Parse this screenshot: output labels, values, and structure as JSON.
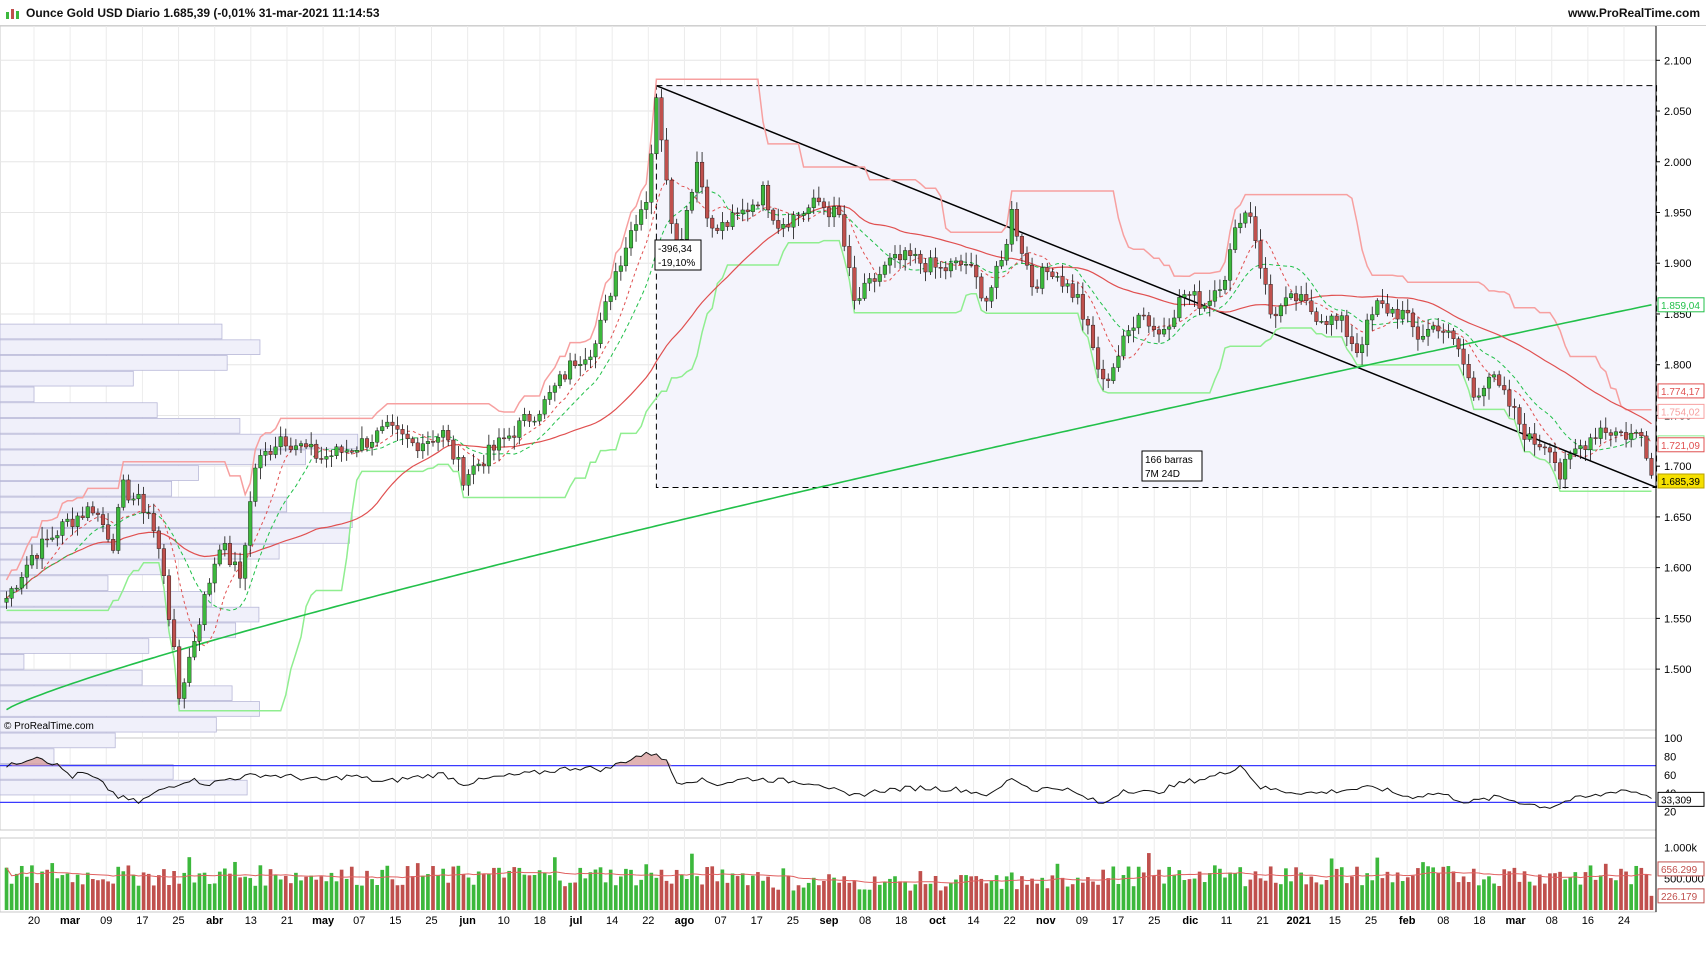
{
  "header": {
    "title": "Ounce Gold USD Diario 1.685,39 (-0,01% 31-mar-2021 11:14:53",
    "site": "www.ProRealTime.com"
  },
  "watermark": "© ProRealTime.com",
  "colors": {
    "up": "#3cb83c",
    "down": "#c0504d",
    "ma200": "#22c04a",
    "ma50": "#e05050",
    "band_upper": "#f7a0a0",
    "band_lower": "#90ee90",
    "rsi_line": "#111111",
    "rsi_level": "#3a3aff",
    "price_tag": "#f5e000"
  },
  "chart_data": [
    {
      "type": "candlestick",
      "ylim": [
        1440,
        2120
      ],
      "y_ticks": [
        "2.100",
        "2.050",
        "2.000",
        "1.950",
        "1.900",
        "1.850",
        "1.800",
        "1.750",
        "1.700",
        "1.650",
        "1.600",
        "1.550",
        "1.500"
      ],
      "y_tick_values": [
        2100,
        2050,
        2000,
        1950,
        1900,
        1850,
        1800,
        1750,
        1700,
        1650,
        1600,
        1550,
        1500
      ],
      "x_labels": [
        "20",
        "mar",
        "09",
        "17",
        "25",
        "abr",
        "13",
        "21",
        "may",
        "07",
        "15",
        "25",
        "jun",
        "10",
        "18",
        "jul",
        "14",
        "22",
        "ago",
        "07",
        "17",
        "25",
        "sep",
        "08",
        "18",
        "oct",
        "14",
        "22",
        "nov",
        "09",
        "17",
        "25",
        "dic",
        "11",
        "21",
        "2021",
        "15",
        "25",
        "feb",
        "08",
        "18",
        "mar",
        "08",
        "16",
        "24"
      ],
      "x_label_bold": [
        "mar",
        "abr",
        "may",
        "jun",
        "jul",
        "ago",
        "sep",
        "oct",
        "nov",
        "dic",
        "2021",
        "feb",
        "mar"
      ],
      "anchors": [
        [
          0,
          1570
        ],
        [
          5,
          1612
        ],
        [
          12,
          1645
        ],
        [
          17,
          1660
        ],
        [
          21,
          1625
        ],
        [
          23,
          1678
        ],
        [
          28,
          1655
        ],
        [
          31,
          1596
        ],
        [
          34,
          1472
        ],
        [
          38,
          1550
        ],
        [
          42,
          1625
        ],
        [
          46,
          1590
        ],
        [
          49,
          1700
        ],
        [
          54,
          1730
        ],
        [
          62,
          1708
        ],
        [
          68,
          1718
        ],
        [
          75,
          1735
        ],
        [
          80,
          1722
        ],
        [
          86,
          1732
        ],
        [
          90,
          1690
        ],
        [
          95,
          1712
        ],
        [
          100,
          1735
        ],
        [
          106,
          1762
        ],
        [
          112,
          1805
        ],
        [
          116,
          1820
        ],
        [
          120,
          1892
        ],
        [
          124,
          1946
        ],
        [
          126,
          1965
        ],
        [
          128,
          2058
        ],
        [
          129,
          2028
        ],
        [
          132,
          1908
        ],
        [
          136,
          2000
        ],
        [
          139,
          1930
        ],
        [
          144,
          1945
        ],
        [
          149,
          1970
        ],
        [
          152,
          1940
        ],
        [
          156,
          1948
        ],
        [
          160,
          1960
        ],
        [
          164,
          1945
        ],
        [
          167,
          1860
        ],
        [
          170,
          1878
        ],
        [
          174,
          1900
        ],
        [
          178,
          1905
        ],
        [
          184,
          1893
        ],
        [
          189,
          1900
        ],
        [
          193,
          1865
        ],
        [
          196,
          1900
        ],
        [
          198,
          1950
        ],
        [
          202,
          1880
        ],
        [
          206,
          1895
        ],
        [
          211,
          1865
        ],
        [
          214,
          1815
        ],
        [
          216,
          1780
        ],
        [
          219,
          1810
        ],
        [
          223,
          1855
        ],
        [
          227,
          1830
        ],
        [
          232,
          1870
        ],
        [
          236,
          1860
        ],
        [
          240,
          1890
        ],
        [
          243,
          1948
        ],
        [
          245,
          1950
        ],
        [
          247,
          1900
        ],
        [
          249,
          1850
        ],
        [
          254,
          1865
        ],
        [
          258,
          1850
        ],
        [
          263,
          1840
        ],
        [
          266,
          1815
        ],
        [
          270,
          1858
        ],
        [
          275,
          1850
        ],
        [
          278,
          1828
        ],
        [
          282,
          1840
        ],
        [
          286,
          1815
        ],
        [
          289,
          1770
        ],
        [
          292,
          1790
        ],
        [
          296,
          1760
        ],
        [
          300,
          1725
        ],
        [
          304,
          1722
        ],
        [
          306,
          1690
        ],
        [
          309,
          1715
        ],
        [
          314,
          1738
        ],
        [
          318,
          1732
        ],
        [
          322,
          1730
        ],
        [
          325,
          1685
        ]
      ],
      "up_count": 185,
      "down_count": 140,
      "ma200_start": 1460,
      "ma200_current": "1.859,04",
      "ma50_current": "1.774,17",
      "band_upper_current": "1.754,02",
      "band_lower_current": "1.722,99",
      "ma20_current": "1.721,09",
      "last_price": "1.685,39",
      "measure_box": {
        "from_bar": 128,
        "to_bar": 325,
        "high": 2075,
        "low": 1679
      },
      "measure_label": [
        "-396,34",
        "-19,10%"
      ],
      "bars_label": [
        "166 barras",
        "7M 24D"
      ]
    },
    {
      "type": "line",
      "name": "RSI",
      "ylim": [
        0,
        100
      ],
      "y_ticks": [
        "100",
        "80",
        "60",
        "40",
        "20"
      ],
      "y_tick_values": [
        100,
        80,
        60,
        40,
        20
      ],
      "levels": [
        70,
        30
      ],
      "current": "33,309",
      "anchors": [
        [
          0,
          68
        ],
        [
          3,
          75
        ],
        [
          6,
          81
        ],
        [
          10,
          70
        ],
        [
          13,
          58
        ],
        [
          15,
          62
        ],
        [
          18,
          54
        ],
        [
          22,
          36
        ],
        [
          26,
          30
        ],
        [
          31,
          45
        ],
        [
          36,
          55
        ],
        [
          40,
          50
        ],
        [
          44,
          56
        ],
        [
          50,
          60
        ],
        [
          56,
          58
        ],
        [
          62,
          54
        ],
        [
          68,
          59
        ],
        [
          74,
          52
        ],
        [
          80,
          57
        ],
        [
          86,
          61
        ],
        [
          90,
          50
        ],
        [
          96,
          57
        ],
        [
          104,
          62
        ],
        [
          112,
          68
        ],
        [
          118,
          66
        ],
        [
          124,
          80
        ],
        [
          128,
          84
        ],
        [
          130,
          74
        ],
        [
          132,
          52
        ],
        [
          136,
          55
        ],
        [
          140,
          50
        ],
        [
          146,
          56
        ],
        [
          152,
          54
        ],
        [
          160,
          51
        ],
        [
          166,
          36
        ],
        [
          172,
          43
        ],
        [
          180,
          46
        ],
        [
          188,
          44
        ],
        [
          194,
          38
        ],
        [
          198,
          57
        ],
        [
          202,
          44
        ],
        [
          208,
          46
        ],
        [
          212,
          36
        ],
        [
          216,
          28
        ],
        [
          220,
          44
        ],
        [
          226,
          40
        ],
        [
          232,
          52
        ],
        [
          236,
          56
        ],
        [
          240,
          62
        ],
        [
          243,
          71
        ],
        [
          247,
          46
        ],
        [
          252,
          42
        ],
        [
          258,
          40
        ],
        [
          264,
          44
        ],
        [
          270,
          46
        ],
        [
          276,
          36
        ],
        [
          282,
          40
        ],
        [
          288,
          30
        ],
        [
          294,
          36
        ],
        [
          300,
          28
        ],
        [
          304,
          25
        ],
        [
          308,
          33
        ],
        [
          314,
          38
        ],
        [
          318,
          44
        ],
        [
          322,
          40
        ],
        [
          325,
          33.3
        ]
      ]
    },
    {
      "type": "bar",
      "name": "Volume",
      "ylim": [
        0,
        1150
      ],
      "y_ticks": [
        "1.000k",
        "500.000"
      ],
      "y_tick_values": [
        1000,
        500
      ],
      "ma_current": "656.299",
      "last_volume": "226.179",
      "base": 380,
      "amplitude": 560,
      "spike_every": 9
    }
  ]
}
